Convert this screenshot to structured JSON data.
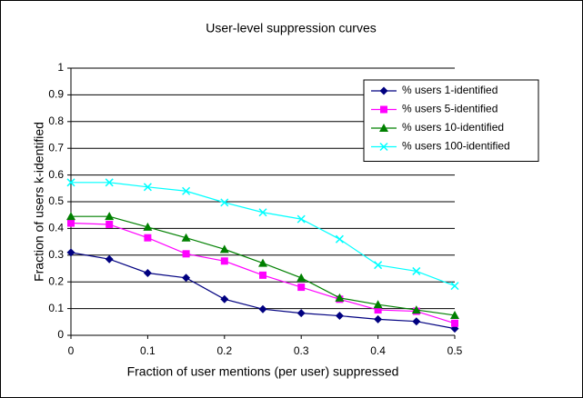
{
  "chart_data": {
    "type": "line",
    "title": "User-level suppression curves",
    "xlabel": "Fraction of user mentions (per user) suppressed",
    "ylabel": "Fraction of users k-identified",
    "x": [
      0,
      0.05,
      0.1,
      0.15,
      0.2,
      0.25,
      0.3,
      0.35,
      0.4,
      0.45,
      0.5
    ],
    "series": [
      {
        "name": "% users 1-identified",
        "color": "#000080",
        "marker": "diamond",
        "values": [
          0.31,
          0.285,
          0.233,
          0.215,
          0.135,
          0.098,
          0.083,
          0.073,
          0.06,
          0.052,
          0.025
        ]
      },
      {
        "name": "% users 5-identified",
        "color": "#ff00ff",
        "marker": "square",
        "values": [
          0.42,
          0.415,
          0.365,
          0.305,
          0.278,
          0.225,
          0.18,
          0.135,
          0.095,
          0.09,
          0.045
        ]
      },
      {
        "name": "% users 10-identified",
        "color": "#008000",
        "marker": "triangle",
        "values": [
          0.445,
          0.445,
          0.405,
          0.365,
          0.322,
          0.27,
          0.215,
          0.14,
          0.115,
          0.095,
          0.075
        ]
      },
      {
        "name": "% users 100-identified",
        "color": "#00ffff",
        "marker": "x",
        "values": [
          0.572,
          0.572,
          0.555,
          0.54,
          0.497,
          0.46,
          0.435,
          0.36,
          0.263,
          0.24,
          0.185
        ]
      }
    ],
    "xlim": [
      0,
      0.5
    ],
    "xticks": [
      0,
      0.1,
      0.2,
      0.3,
      0.4,
      0.5
    ],
    "ylim": [
      0,
      1
    ],
    "yticks": [
      0,
      0.1,
      0.2,
      0.3,
      0.4,
      0.5,
      0.6,
      0.7,
      0.8,
      0.9,
      1
    ],
    "grid": true,
    "legend": "upper right"
  }
}
